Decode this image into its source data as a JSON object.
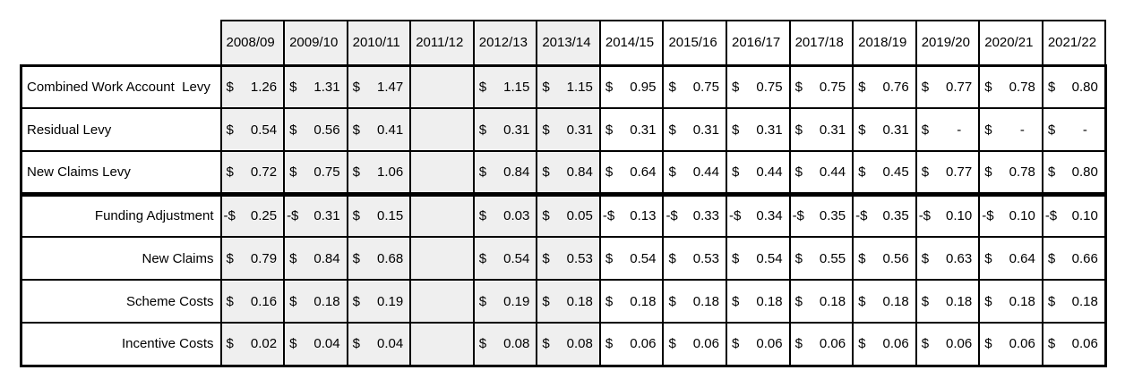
{
  "table": {
    "corner": "",
    "years": [
      "2008/09",
      "2009/10",
      "2010/11",
      "2011/12",
      "2012/13",
      "2013/14",
      "2014/15",
      "2015/16",
      "2016/17",
      "2017/18",
      "2018/19",
      "2019/20",
      "2020/21",
      "2021/22"
    ],
    "shaded_year_count": 6,
    "shaded_color": "#efefef",
    "border_color": "#000000",
    "currency_symbol": "$",
    "rows": [
      {
        "label": "Combined Work Account  Levy",
        "section": "levy",
        "cells": [
          "$|1.26",
          "$|1.31",
          "$|1.47",
          "",
          "$|1.15",
          "$|1.15",
          "$|0.95",
          "$|0.75",
          "$|0.75",
          "$|0.75",
          "$|0.76",
          "$|0.77",
          "$|0.78",
          "$|0.80"
        ]
      },
      {
        "label": "Residual Levy",
        "section": "levy",
        "cells": [
          "$|0.54",
          "$|0.56",
          "$|0.41",
          "",
          "$|0.31",
          "$|0.31",
          "$|0.31",
          "$|0.31",
          "$|0.31",
          "$|0.31",
          "$|0.31",
          "$|-",
          "$|-",
          "$|-"
        ]
      },
      {
        "label": "New Claims Levy",
        "section": "levy",
        "cells": [
          "$|0.72",
          "$|0.75",
          "$|1.06",
          "",
          "$|0.84",
          "$|0.84",
          "$|0.64",
          "$|0.44",
          "$|0.44",
          "$|0.44",
          "$|0.45",
          "$|0.77",
          "$|0.78",
          "$|0.80"
        ]
      },
      {
        "label": "Funding Adjustment",
        "section": "component",
        "cells": [
          "-$|0.25",
          "-$|0.31",
          "$|0.15",
          "",
          "$|0.03",
          "$|0.05",
          "-$|0.13",
          "-$|0.33",
          "-$|0.34",
          "-$|0.35",
          "-$|0.35",
          "-$|0.10",
          "-$|0.10",
          "-$|0.10"
        ]
      },
      {
        "label": "New Claims",
        "section": "component",
        "cells": [
          "$|0.79",
          "$|0.84",
          "$|0.68",
          "",
          "$|0.54",
          "$|0.53",
          "$|0.54",
          "$|0.53",
          "$|0.54",
          "$|0.55",
          "$|0.56",
          "$|0.63",
          "$|0.64",
          "$|0.66"
        ]
      },
      {
        "label": "Scheme Costs",
        "section": "component",
        "cells": [
          "$|0.16",
          "$|0.18",
          "$|0.19",
          "",
          "$|0.19",
          "$|0.18",
          "$|0.18",
          "$|0.18",
          "$|0.18",
          "$|0.18",
          "$|0.18",
          "$|0.18",
          "$|0.18",
          "$|0.18"
        ]
      },
      {
        "label": "Incentive Costs",
        "section": "component",
        "cells": [
          "$|0.02",
          "$|0.04",
          "$|0.04",
          "",
          "$|0.08",
          "$|0.08",
          "$|0.06",
          "$|0.06",
          "$|0.06",
          "$|0.06",
          "$|0.06",
          "$|0.06",
          "$|0.06",
          "$|0.06"
        ]
      }
    ]
  }
}
